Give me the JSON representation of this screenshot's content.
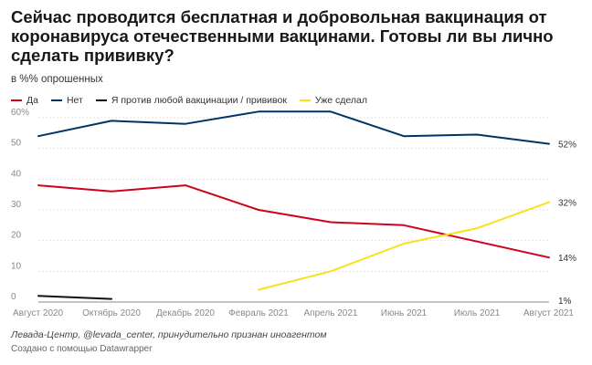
{
  "chart_data": {
    "type": "line",
    "title": "Сейчас проводится бесплатная и добровольная вакцинация от коронавируса отечественными вакцинами. Готовы ли вы лично сделать прививку?",
    "subtitle": "в %% опрошенных",
    "categories": [
      "Август 2020",
      "Октябрь 2020",
      "Декабрь 2020",
      "Февраль 2021",
      "Апрель 2021",
      "Июнь 2021",
      "Июль 2021",
      "Август 2021"
    ],
    "ylim": [
      0,
      60
    ],
    "yticks": [
      "0",
      "10",
      "20",
      "30",
      "40",
      "50",
      "60%"
    ],
    "grid": true,
    "legend_position": "top-left",
    "series": [
      {
        "name": "Да",
        "color": "#d0021b",
        "values": [
          38,
          36,
          38,
          30,
          26,
          25,
          null,
          14.5
        ],
        "end_label": "14%"
      },
      {
        "name": "Нет",
        "color": "#003366",
        "values": [
          54,
          59,
          58,
          62,
          62,
          54,
          54.5,
          51.5
        ],
        "end_label": "52%"
      },
      {
        "name": "Я против любой вакцинации / прививок",
        "color": "#111111",
        "values": [
          2,
          1,
          null,
          null,
          null,
          null,
          null,
          null
        ],
        "end_label": "1%"
      },
      {
        "name": "Уже сделал",
        "color": "#f5e31a",
        "values": [
          null,
          null,
          null,
          4,
          10,
          19,
          24,
          32.5
        ],
        "end_label": "32%"
      }
    ]
  },
  "footer": {
    "source": "Левада-Центр, @levada_center, принудительно признан иноагентом",
    "credit": "Создано с помощью Datawrapper"
  }
}
